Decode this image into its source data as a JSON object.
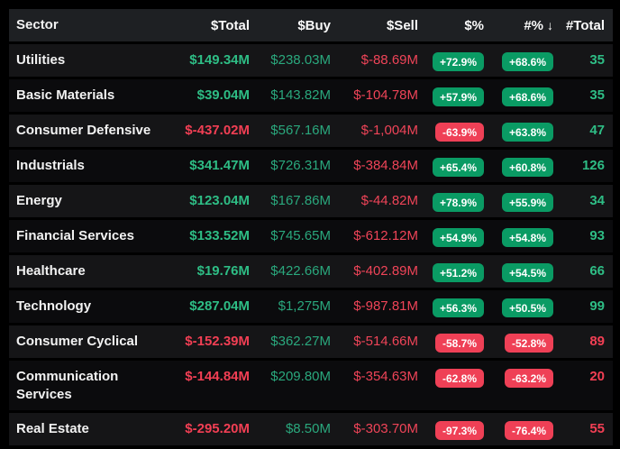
{
  "colors": {
    "page_background": "#000000",
    "header_background": "#1e2023",
    "row_dark": "#0b0b0d",
    "row_light": "#151517",
    "text_white": "#f2f2f2",
    "text_green": "#2ebd85",
    "text_red": "#f23f54",
    "badge_green": "#0a9b64",
    "badge_red": "#ef4056"
  },
  "table": {
    "sort_icon": "↓",
    "sorted_column": "#%",
    "columns": [
      {
        "key": "sector",
        "label": "Sector"
      },
      {
        "key": "total_usd",
        "label": "$Total"
      },
      {
        "key": "buy",
        "label": "$Buy"
      },
      {
        "key": "sell",
        "label": "$Sell"
      },
      {
        "key": "pct_usd",
        "label": "$%"
      },
      {
        "key": "pct_num",
        "label": "#%",
        "sorted": "desc"
      },
      {
        "key": "total_num",
        "label": "#Total"
      }
    ],
    "rows": [
      {
        "sector": "Utilities",
        "total_usd": "$149.34M",
        "total_usd_color": "green",
        "buy": "$238.03M",
        "buy_color": "green-dim",
        "sell": "$-88.69M",
        "sell_color": "red-dim",
        "pct_usd": "+72.9%",
        "pct_usd_color": "green",
        "pct_num": "+68.6%",
        "pct_num_color": "green",
        "total_num": "35",
        "total_num_color": "green"
      },
      {
        "sector": "Basic Materials",
        "total_usd": "$39.04M",
        "total_usd_color": "green",
        "buy": "$143.82M",
        "buy_color": "green-dim",
        "sell": "$-104.78M",
        "sell_color": "red-dim",
        "pct_usd": "+57.9%",
        "pct_usd_color": "green",
        "pct_num": "+68.6%",
        "pct_num_color": "green",
        "total_num": "35",
        "total_num_color": "green"
      },
      {
        "sector": "Consumer Defensive",
        "total_usd": "$-437.02M",
        "total_usd_color": "red",
        "buy": "$567.16M",
        "buy_color": "green-dim",
        "sell": "$-1,004M",
        "sell_color": "red-dim",
        "pct_usd": "-63.9%",
        "pct_usd_color": "red",
        "pct_num": "+63.8%",
        "pct_num_color": "green",
        "total_num": "47",
        "total_num_color": "green"
      },
      {
        "sector": "Industrials",
        "total_usd": "$341.47M",
        "total_usd_color": "green",
        "buy": "$726.31M",
        "buy_color": "green-dim",
        "sell": "$-384.84M",
        "sell_color": "red-dim",
        "pct_usd": "+65.4%",
        "pct_usd_color": "green",
        "pct_num": "+60.8%",
        "pct_num_color": "green",
        "total_num": "126",
        "total_num_color": "green"
      },
      {
        "sector": "Energy",
        "total_usd": "$123.04M",
        "total_usd_color": "green",
        "buy": "$167.86M",
        "buy_color": "green-dim",
        "sell": "$-44.82M",
        "sell_color": "red-dim",
        "pct_usd": "+78.9%",
        "pct_usd_color": "green",
        "pct_num": "+55.9%",
        "pct_num_color": "green",
        "total_num": "34",
        "total_num_color": "green"
      },
      {
        "sector": "Financial Services",
        "total_usd": "$133.52M",
        "total_usd_color": "green",
        "buy": "$745.65M",
        "buy_color": "green-dim",
        "sell": "$-612.12M",
        "sell_color": "red-dim",
        "pct_usd": "+54.9%",
        "pct_usd_color": "green",
        "pct_num": "+54.8%",
        "pct_num_color": "green",
        "total_num": "93",
        "total_num_color": "green"
      },
      {
        "sector": "Healthcare",
        "total_usd": "$19.76M",
        "total_usd_color": "green",
        "buy": "$422.66M",
        "buy_color": "green-dim",
        "sell": "$-402.89M",
        "sell_color": "red-dim",
        "pct_usd": "+51.2%",
        "pct_usd_color": "green",
        "pct_num": "+54.5%",
        "pct_num_color": "green",
        "total_num": "66",
        "total_num_color": "green"
      },
      {
        "sector": "Technology",
        "total_usd": "$287.04M",
        "total_usd_color": "green",
        "buy": "$1,275M",
        "buy_color": "green-dim",
        "sell": "$-987.81M",
        "sell_color": "red-dim",
        "pct_usd": "+56.3%",
        "pct_usd_color": "green",
        "pct_num": "+50.5%",
        "pct_num_color": "green",
        "total_num": "99",
        "total_num_color": "green"
      },
      {
        "sector": "Consumer Cyclical",
        "total_usd": "$-152.39M",
        "total_usd_color": "red",
        "buy": "$362.27M",
        "buy_color": "green-dim",
        "sell": "$-514.66M",
        "sell_color": "red-dim",
        "pct_usd": "-58.7%",
        "pct_usd_color": "red",
        "pct_num": "-52.8%",
        "pct_num_color": "red",
        "total_num": "89",
        "total_num_color": "red"
      },
      {
        "sector": "Communication Services",
        "total_usd": "$-144.84M",
        "total_usd_color": "red",
        "buy": "$209.80M",
        "buy_color": "green-dim",
        "sell": "$-354.63M",
        "sell_color": "red-dim",
        "pct_usd": "-62.8%",
        "pct_usd_color": "red",
        "pct_num": "-63.2%",
        "pct_num_color": "red",
        "total_num": "20",
        "total_num_color": "red"
      },
      {
        "sector": "Real Estate",
        "total_usd": "$-295.20M",
        "total_usd_color": "red",
        "buy": "$8.50M",
        "buy_color": "green-dim",
        "sell": "$-303.70M",
        "sell_color": "red-dim",
        "pct_usd": "-97.3%",
        "pct_usd_color": "red",
        "pct_num": "-76.4%",
        "pct_num_color": "red",
        "total_num": "55",
        "total_num_color": "red"
      }
    ]
  }
}
